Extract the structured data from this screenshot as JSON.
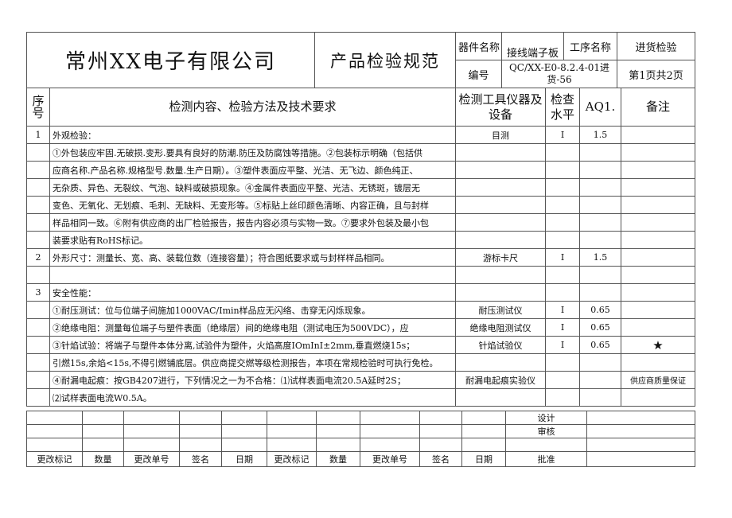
{
  "header": {
    "company": "常州XX电子有限公司",
    "doc_title": "产品检验规范",
    "part_name_label": "器件名称",
    "part_name": "接线端子板",
    "process_label": "工序名称",
    "process": "进货检验",
    "number_label": "编号",
    "number": "QC/XX-E0-8.2.4-01进货-56",
    "page": "第1页共2页"
  },
  "columns": {
    "seq": "序号",
    "content": "检测内容、检验方法及技术要求",
    "tool": "检测工具仪器及设备",
    "level": "检查水平",
    "aql": "AQ1.",
    "remark": "备注"
  },
  "rows": [
    {
      "seq": "1",
      "content": "外观检验：",
      "tool": "目测",
      "level": "I",
      "aql": "1.5",
      "remark": ""
    },
    {
      "seq": "",
      "content": "①外包装应牢固.无破损.变形.要具有良好的防潮.防压及防腐蚀等措施。②包装标示明确（包括供",
      "tool": "",
      "level": "",
      "aql": "",
      "remark": ""
    },
    {
      "seq": "",
      "content": "应商名称.产品名称.规格型号.数量.生产日期）。③塑件表面应平整、光洁、无飞边、颜色纯正、",
      "tool": "",
      "level": "",
      "aql": "",
      "remark": ""
    },
    {
      "seq": "",
      "content": "无杂质、异色、无裂纹、气泡、缺料或破损现象。④金属件表面应平整、光洁、无锈斑，镀层无",
      "tool": "",
      "level": "",
      "aql": "",
      "remark": ""
    },
    {
      "seq": "",
      "content": "变色、无氧化、无划痕、毛刺、无缺料、无变形等。⑤标贴上丝印颜色清晰、内容正确，且与封样",
      "tool": "",
      "level": "",
      "aql": "",
      "remark": ""
    },
    {
      "seq": "",
      "content": "样品相同一致。⑥附有供应商的出厂检验报告，报告内容必须与实物一致。⑦要求外包装及最小包",
      "tool": "",
      "level": "",
      "aql": "",
      "remark": ""
    },
    {
      "seq": "",
      "content": "装要求贴有RoHS标记。",
      "tool": "",
      "level": "",
      "aql": "",
      "remark": ""
    },
    {
      "seq": "2",
      "content": "外形尺寸：测量长、宽、高、装载位数（连接容量）；符合图纸要求或与封样样品相同。",
      "tool": "游标卡尺",
      "level": "I",
      "aql": "1.5",
      "remark": ""
    },
    {
      "seq": "",
      "content": "",
      "tool": "",
      "level": "",
      "aql": "",
      "remark": ""
    },
    {
      "seq": "3",
      "content": "安全性能：",
      "tool": "",
      "level": "",
      "aql": "",
      "remark": ""
    },
    {
      "seq": "",
      "content": "①耐压测试：位与位端子间施加1000VAC/Imin样品应无闪络、击穿无闪烁现象。",
      "tool": "耐压测试仪",
      "level": "I",
      "aql": "0.65",
      "remark": ""
    },
    {
      "seq": "",
      "content": "②绝缘电阻：测量每位端子与塑件表面（绝缘层）间的绝缘电阻（测试电压为500VDC），应",
      "tool": "绝缘电阻测试仪",
      "level": "I",
      "aql": "0.65",
      "remark": ""
    },
    {
      "seq": "",
      "content": "③针焰试验：将端子与塑件本体分离,试验件为塑件，火焰高度IOmInI±2mm,垂直燃烧15s；",
      "tool": "针焰试验仪",
      "level": "I",
      "aql": "0.65",
      "remark": "★"
    },
    {
      "seq": "",
      "content": "引燃15s,余焰<15s,不得引燃铺底层。供应商提交燃等级检测报告，本项在常规检验时可执行免检。",
      "tool": "",
      "level": "",
      "aql": "",
      "remark": ""
    },
    {
      "seq": "",
      "content": "④耐漏电起痕：按GB4207进行，下列情况之一为不合格：⑴试样表面电流20.5A延时2S；",
      "tool": "耐漏电起痕实验仪",
      "level": "",
      "aql": "",
      "remark": "供应商质量保证"
    },
    {
      "seq": "",
      "content": "⑵试样表面电流W0.5A。",
      "tool": "",
      "level": "",
      "aql": "",
      "remark": ""
    }
  ],
  "footer": {
    "design": "设计",
    "review": "审核",
    "approve": "批准",
    "change_headers": [
      "更改标记",
      "数量",
      "更改单号",
      "签名",
      "日期",
      "更改标记",
      "数量",
      "更改单号",
      "签名",
      "日期"
    ]
  }
}
